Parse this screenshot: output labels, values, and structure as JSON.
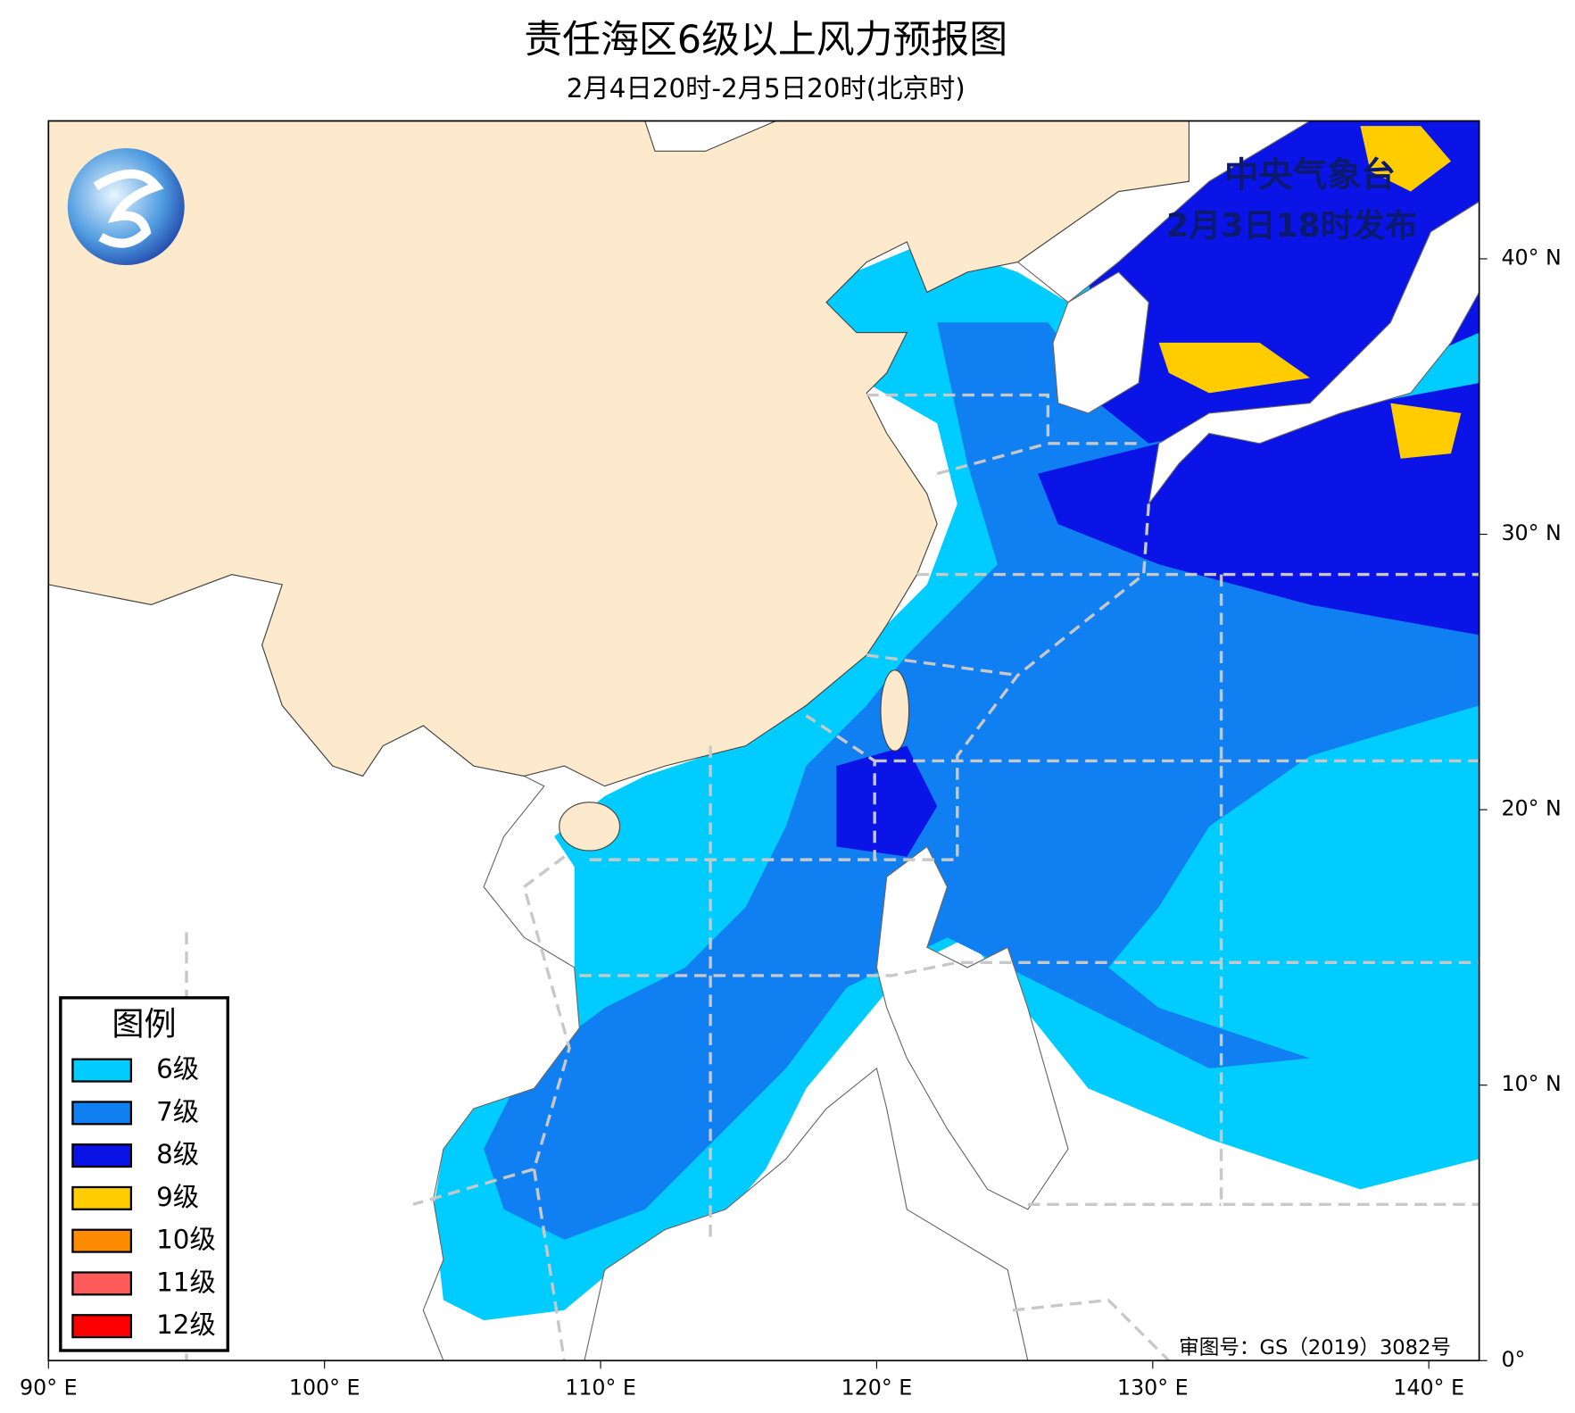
{
  "title": "责任海区6级以上风力预报图",
  "subtitle": "2月4日20时-2月5日20时(北京时)",
  "issuer": "中央气象台",
  "issue_time": "2月3日18时发布",
  "legend": {
    "title": "图例",
    "items": [
      {
        "label": "6级",
        "color": "#00ccff"
      },
      {
        "label": "7级",
        "color": "#0f7ff2"
      },
      {
        "label": "8级",
        "color": "#0a14e6"
      },
      {
        "label": "9级",
        "color": "#ffcc00"
      },
      {
        "label": "10级",
        "color": "#ff8c00"
      },
      {
        "label": "11级",
        "color": "#ff5a5a"
      },
      {
        "label": "12级",
        "color": "#ff0000"
      }
    ]
  },
  "x_axis_labels": [
    "90° E",
    "100° E",
    "110° E",
    "120° E",
    "130° E",
    "140° E"
  ],
  "y_axis_labels": [
    "0°",
    "10° N",
    "20° N",
    "30° N",
    "40° N"
  ],
  "map_number": "审图号：GS（2019）3082号"
}
